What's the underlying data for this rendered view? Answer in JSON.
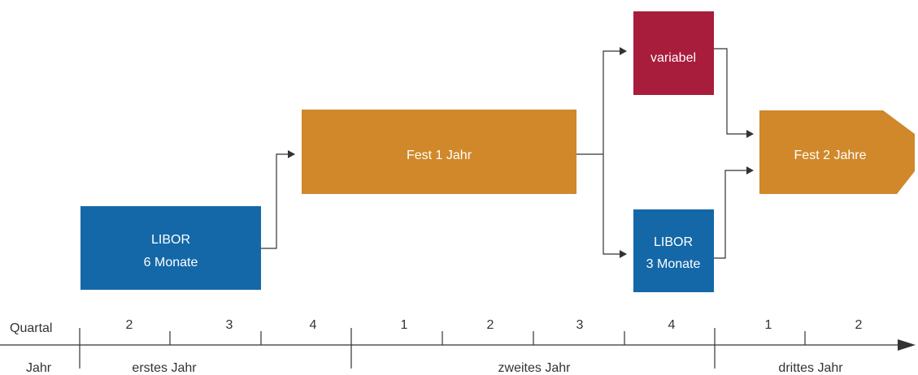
{
  "colors": {
    "blue": "#1468A8",
    "orange": "#D0882A",
    "crimson": "#A81C3C",
    "line": "#333333"
  },
  "boxes": {
    "libor6": {
      "line1": "LIBOR",
      "line2": "6 Monate"
    },
    "fest1": {
      "label": "Fest 1 Jahr"
    },
    "variabel": {
      "label": "variabel"
    },
    "libor3": {
      "line1": "LIBOR",
      "line2": "3 Monate"
    },
    "fest2": {
      "label": "Fest 2 Jahre"
    }
  },
  "timeline": {
    "quartal_label": "Quartal",
    "jahr_label": "Jahr",
    "quarters": [
      "2",
      "3",
      "4",
      "1",
      "2",
      "3",
      "4",
      "1",
      "2"
    ],
    "years": [
      "erstes Jahr",
      "zweites Jahr",
      "drittes Jahr"
    ]
  }
}
